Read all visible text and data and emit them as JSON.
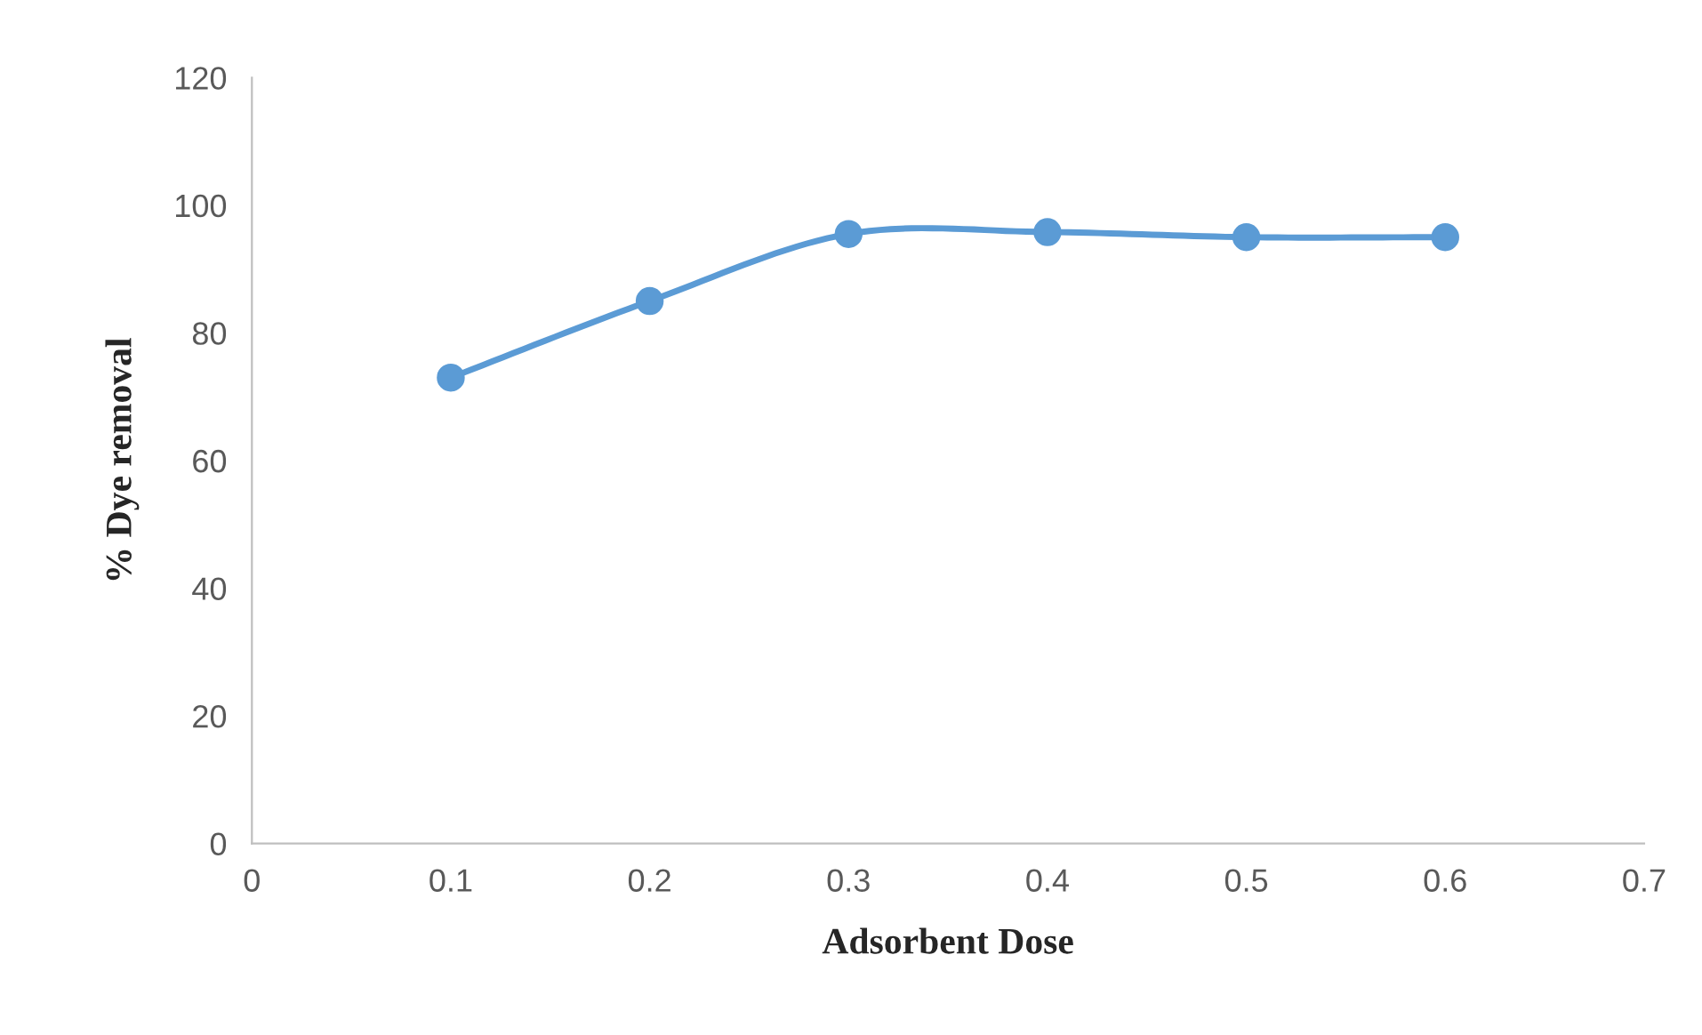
{
  "chart_data": {
    "type": "line",
    "xlabel": "Adsorbent Dose",
    "ylabel": "% Dye removal",
    "x": [
      0.1,
      0.2,
      0.3,
      0.4,
      0.5,
      0.6
    ],
    "series": [
      {
        "color": "#5b9bd5",
        "values": [
          73,
          85,
          95.5,
          95.8,
          95,
          95
        ]
      }
    ],
    "xlim": [
      0,
      0.7
    ],
    "xticks": [
      0,
      0.1,
      0.2,
      0.3,
      0.4,
      0.5,
      0.6,
      0.7
    ],
    "ylim": [
      0,
      120
    ],
    "yticks": [
      0,
      20,
      40,
      60,
      80,
      100,
      120
    ],
    "grid": false,
    "marker": "circle",
    "line_style": "solid"
  }
}
